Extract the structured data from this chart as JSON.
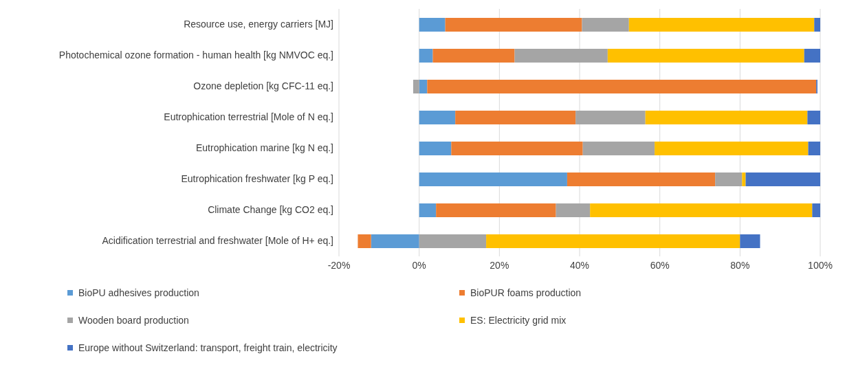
{
  "chart_data": {
    "type": "bar",
    "orientation": "horizontal",
    "stacked": true,
    "categories": [
      "Resource use, energy carriers [MJ]",
      "Photochemical ozone formation - human health [kg NMVOC eq.]",
      "Ozone depletion [kg CFC-11 eq.]",
      "Eutrophication terrestrial [Mole of N eq.]",
      "Eutrophication marine [kg N eq.]",
      "Eutrophication freshwater [kg P eq.]",
      "Climate Change [kg CO2 eq.]",
      "Acidification terrestrial and freshwater [Mole of H+ eq.]"
    ],
    "series": [
      {
        "name": "BioPU adhesives production",
        "color": "#5b9bd5",
        "values": [
          6.5,
          3.4,
          2,
          9,
          8,
          36.9,
          4.2,
          -12
        ]
      },
      {
        "name": "BioPUR foams production",
        "color": "#ed7d31",
        "values": [
          34.1,
          20.4,
          97,
          30,
          32.8,
          36.9,
          29.9,
          -3.3
        ]
      },
      {
        "name": "Wooden board production",
        "color": "#a5a5a5",
        "values": [
          11.7,
          23.2,
          -1.5,
          17.4,
          17.9,
          6.7,
          8.5,
          16.7
        ]
      },
      {
        "name": "ES: Electricity grid mix",
        "color": "#ffc000",
        "values": [
          46.2,
          49,
          0,
          40.4,
          38.3,
          0.9,
          55.4,
          63.3
        ]
      },
      {
        "name": "Europe without Switzerland: transport, freight train, electricity",
        "color": "#4472c4",
        "values": [
          1.5,
          4,
          0.3,
          3.2,
          3,
          18.6,
          2,
          5
        ]
      }
    ],
    "xlim": [
      -20,
      100
    ],
    "xticks": [
      {
        "value": -20,
        "label": "-20%"
      },
      {
        "value": 0,
        "label": "0%"
      },
      {
        "value": 20,
        "label": "20%"
      },
      {
        "value": 40,
        "label": "40%"
      },
      {
        "value": 60,
        "label": "60%"
      },
      {
        "value": 80,
        "label": "80%"
      },
      {
        "value": 100,
        "label": "100%"
      }
    ],
    "grid": "x",
    "legend": "bottom"
  }
}
